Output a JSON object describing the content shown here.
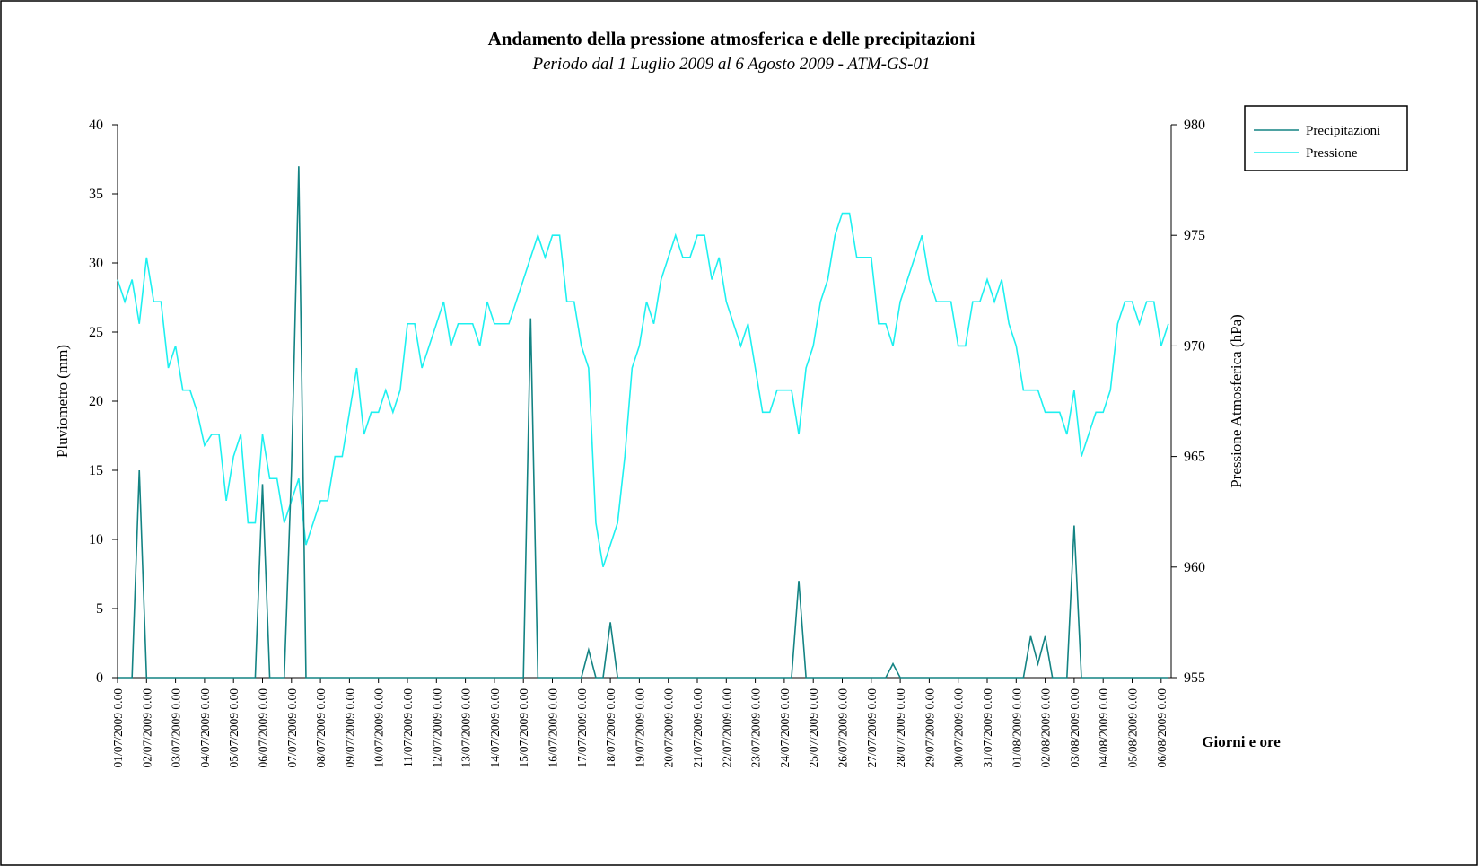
{
  "chart_data": {
    "type": "line",
    "title": "Andamento della pressione atmosferica e delle precipitazioni",
    "subtitle": "Periodo dal 1 Luglio 2009 al 6 Agosto 2009 - ATM-GS-01",
    "ylabel": "Pluviometro (mm)",
    "y2label": "Pressione Atmosferica (hPa)",
    "xlabel": "Giorni e ore",
    "categories": [
      "01/07/2009 0.00",
      null,
      null,
      null,
      "02/07/2009 0.00",
      null,
      null,
      null,
      "03/07/2009 0.00",
      null,
      null,
      null,
      "04/07/2009 0.00",
      null,
      null,
      null,
      "05/07/2009 0.00",
      null,
      null,
      null,
      "06/07/2009 0.00",
      null,
      null,
      null,
      "07/07/2009 0.00",
      null,
      null,
      null,
      "08/07/2009 0.00",
      null,
      null,
      null,
      "09/07/2009 0.00",
      null,
      null,
      null,
      "10/07/2009 0.00",
      null,
      null,
      null,
      "11/07/2009 0.00",
      null,
      null,
      null,
      "12/07/2009 0.00",
      null,
      null,
      null,
      "13/07/2009 0.00",
      null,
      null,
      null,
      "14/07/2009 0.00",
      null,
      null,
      null,
      "15/07/2009 0.00",
      null,
      null,
      null,
      "16/07/2009 0.00",
      null,
      null,
      null,
      "17/07/2009 0.00",
      null,
      null,
      null,
      "18/07/2009 0.00",
      null,
      null,
      null,
      "19/07/2009 0.00",
      null,
      null,
      null,
      "20/07/2009 0.00",
      null,
      null,
      null,
      "21/07/2009 0.00",
      null,
      null,
      null,
      "22/07/2009 0.00",
      null,
      null,
      null,
      "23/07/2009 0.00",
      null,
      null,
      null,
      "24/07/2009 0.00",
      null,
      null,
      null,
      "25/07/2009 0.00",
      null,
      null,
      null,
      "26/07/2009 0.00",
      null,
      null,
      null,
      "27/07/2009 0.00",
      null,
      null,
      null,
      "28/07/2009 0.00",
      null,
      null,
      null,
      "29/07/2009 0.00",
      null,
      null,
      null,
      "30/07/2009 0.00",
      null,
      null,
      null,
      "31/07/2009 0.00",
      null,
      null,
      null,
      "01/08/2009 0.00",
      null,
      null,
      null,
      "02/08/2009 0.00",
      null,
      null,
      null,
      "03/08/2009 0.00",
      null,
      null,
      null,
      "04/08/2009 0.00",
      null,
      null,
      null,
      "05/08/2009 0.00",
      null,
      null,
      null,
      "06/08/2009 0.00",
      null
    ],
    "series": [
      {
        "name": "Precipitazioni",
        "color": "#138383",
        "axis": "y",
        "values": [
          0,
          0,
          0,
          15,
          0,
          0,
          0,
          0,
          0,
          0,
          0,
          0,
          0,
          0,
          0,
          0,
          0,
          0,
          0,
          0,
          14,
          0,
          0,
          0,
          15,
          37,
          0,
          0,
          0,
          0,
          0,
          0,
          0,
          0,
          0,
          0,
          0,
          0,
          0,
          0,
          0,
          0,
          0,
          0,
          0,
          0,
          0,
          0,
          0,
          0,
          0,
          0,
          0,
          0,
          0,
          0,
          0,
          26,
          0,
          0,
          0,
          0,
          0,
          0,
          0,
          2,
          0,
          0,
          4,
          0,
          0,
          0,
          0,
          0,
          0,
          0,
          0,
          0,
          0,
          0,
          0,
          0,
          0,
          0,
          0,
          0,
          0,
          0,
          0,
          0,
          0,
          0,
          0,
          0,
          7,
          0,
          0,
          0,
          0,
          0,
          0,
          0,
          0,
          0,
          0,
          0,
          0,
          1,
          0,
          0,
          0,
          0,
          0,
          0,
          0,
          0,
          0,
          0,
          0,
          0,
          0,
          0,
          0,
          0,
          0,
          0,
          3,
          1,
          3,
          0,
          0,
          0,
          11,
          0,
          0,
          0,
          0,
          0,
          0,
          0,
          0,
          0,
          0,
          0,
          0,
          0
        ]
      },
      {
        "name": "Pressione",
        "color": "#1ef0f0",
        "axis": "y2",
        "values": [
          973,
          972,
          973,
          971,
          974,
          972,
          972,
          969,
          970,
          968,
          968,
          967,
          965.5,
          966,
          966,
          963,
          965,
          966,
          962,
          962,
          966,
          964,
          964,
          962,
          963,
          964,
          961,
          962,
          963,
          963,
          965,
          965,
          967,
          969,
          966,
          967,
          967,
          968,
          967,
          968,
          971,
          971,
          969,
          970,
          971,
          972,
          970,
          971,
          971,
          971,
          970,
          972,
          971,
          971,
          971,
          972,
          973,
          974,
          975,
          974,
          975,
          975,
          972,
          972,
          970,
          969,
          962,
          960,
          961,
          962,
          965,
          969,
          970,
          972,
          971,
          973,
          974,
          975,
          974,
          974,
          975,
          975,
          973,
          974,
          972,
          971,
          970,
          971,
          969,
          967,
          967,
          968,
          968,
          968,
          966,
          969,
          970,
          972,
          973,
          975,
          976,
          976,
          974,
          974,
          974,
          971,
          971,
          970,
          972,
          973,
          974,
          975,
          973,
          972,
          972,
          972,
          970,
          970,
          972,
          972,
          973,
          972,
          973,
          971,
          970,
          968,
          968,
          968,
          967,
          967,
          967,
          966,
          968,
          965,
          966,
          967,
          967,
          968,
          971,
          972,
          972,
          971,
          972,
          972,
          970,
          971
        ]
      }
    ],
    "ylim": [
      0,
      40
    ],
    "yticks": [
      0,
      5,
      10,
      15,
      20,
      25,
      30,
      35,
      40
    ],
    "y2lim": [
      955,
      980
    ],
    "y2ticks": [
      955,
      960,
      965,
      970,
      975,
      980
    ],
    "legend": "right"
  }
}
